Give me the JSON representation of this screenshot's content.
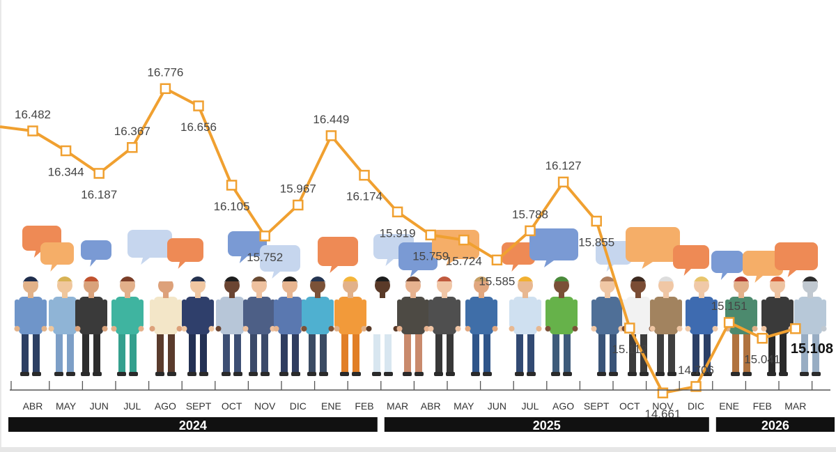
{
  "chart_data": {
    "type": "line",
    "categories": [
      "ABR",
      "MAY",
      "JUN",
      "JUL",
      "AGO",
      "SEPT",
      "OCT",
      "NOV",
      "DIC",
      "ENE",
      "FEB",
      "MAR",
      "ABR",
      "MAY",
      "JUN",
      "JUL",
      "AGO",
      "SEPT",
      "OCT",
      "NOV",
      "DIC",
      "ENE",
      "FEB",
      "MAR"
    ],
    "values": [
      16.482,
      16.344,
      16.187,
      16.367,
      16.776,
      16.656,
      16.105,
      15.752,
      15.967,
      16.449,
      16.174,
      15.919,
      15.759,
      15.724,
      15.585,
      15.788,
      16.127,
      15.855,
      15.112,
      14.661,
      14.706,
      15.151,
      15.041,
      15.108
    ],
    "labels": [
      "16.482",
      "16.344",
      "16.187",
      "16.367",
      "16.776",
      "16.656",
      "16.105",
      "15.752",
      "15.967",
      "16.449",
      "16.174",
      "15.919",
      "15.759",
      "15.724",
      "15.585",
      "15.788",
      "16.127",
      "15.855",
      "15.112",
      "14.661",
      "14.706",
      "15.151",
      "15.041",
      "15.108"
    ],
    "years": [
      {
        "label": "2024",
        "from": 0,
        "to": 10
      },
      {
        "label": "2025",
        "from": 11,
        "to": 20
      },
      {
        "label": "2026",
        "from": 21,
        "to": 23
      }
    ],
    "line_color": "#f0a030",
    "year_bar_color": "#111111",
    "grid": false,
    "legend": "none"
  },
  "illustration": {
    "description_icon": "workers-group-illustration",
    "bubble_colors": [
      "#ee8a55",
      "#f5ae68",
      "#7a9ad4",
      "#c6d6ee",
      "#f7b873"
    ]
  }
}
